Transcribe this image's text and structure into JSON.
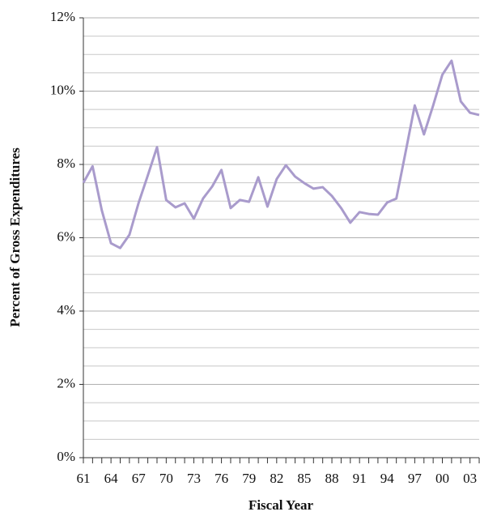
{
  "chart_data": {
    "type": "line",
    "x_label": "Fiscal Year",
    "y_label": "Percent of Gross Expenditures",
    "categories": [
      "61",
      null,
      null,
      "64",
      null,
      null,
      "67",
      null,
      null,
      "70",
      null,
      null,
      "73",
      null,
      null,
      "76",
      null,
      null,
      "79",
      null,
      null,
      "82",
      null,
      null,
      "85",
      null,
      null,
      "88",
      null,
      null,
      "91",
      null,
      null,
      "94",
      null,
      null,
      "97",
      null,
      null,
      "00",
      null,
      null,
      "03",
      null
    ],
    "series": [
      {
        "color": "#a99bcc",
        "values": [
          7.5,
          7.95,
          6.75,
          5.85,
          5.72,
          6.08,
          6.95,
          7.7,
          8.47,
          7.03,
          6.83,
          6.94,
          6.52,
          7.07,
          7.4,
          7.85,
          6.81,
          7.03,
          6.98,
          7.65,
          6.85,
          7.6,
          7.98,
          7.67,
          7.49,
          7.34,
          7.38,
          7.14,
          6.81,
          6.41,
          6.7,
          6.65,
          6.63,
          6.96,
          7.07,
          8.33,
          9.61,
          8.82,
          9.61,
          10.45,
          10.83,
          9.72,
          9.41,
          9.35
        ]
      }
    ],
    "ylim": [
      0,
      12
    ],
    "yticks": [
      {
        "value": 0,
        "label": "0%"
      },
      {
        "value": 2,
        "label": "2%"
      },
      {
        "value": 4,
        "label": "4%"
      },
      {
        "value": 6,
        "label": "6%"
      },
      {
        "value": 8,
        "label": "8%"
      },
      {
        "value": 10,
        "label": "10%"
      },
      {
        "value": 12,
        "label": "12%"
      }
    ],
    "minor_yticks": [
      0.5,
      1,
      1.5,
      2.5,
      3,
      3.5,
      4.5,
      5,
      5.5,
      6.5,
      7,
      7.5,
      8.5,
      9,
      9.5,
      10.5,
      11,
      11.5
    ],
    "grid": true
  }
}
